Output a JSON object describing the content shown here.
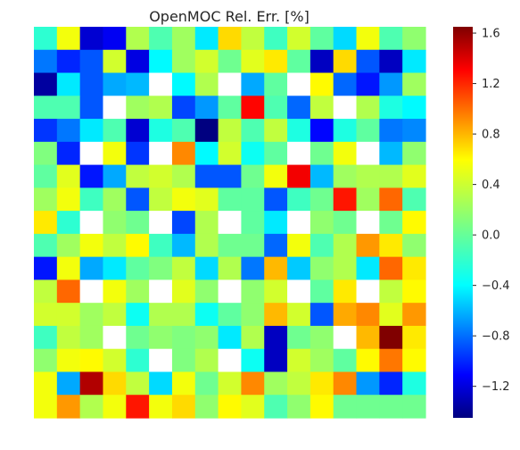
{
  "chart_data": {
    "type": "heatmap",
    "title": "OpenMOC Rel. Err. [%]",
    "xlabel": "",
    "ylabel": "",
    "colormap": "jet",
    "nan_color": "#ffffff",
    "vmin": -1.45,
    "vmax": 1.65,
    "colorbar_ticks": [
      1.6,
      1.2,
      0.8,
      0.4,
      0.0,
      -0.4,
      -0.8,
      -1.2
    ],
    "colorbar_tick_labels": [
      "1.6",
      "1.2",
      "0.8",
      "0.4",
      "0.0",
      "−0.4",
      "−0.8",
      "−1.2"
    ],
    "grid": false,
    "values": [
      [
        -0.15,
        0.45,
        -1.2,
        -1.1,
        0.25,
        -0.05,
        0.2,
        -0.35,
        0.6,
        0.3,
        -0.1,
        0.35,
        0.0,
        -0.4,
        0.45,
        -0.05,
        0.15
      ],
      [
        -0.7,
        -0.95,
        -0.8,
        0.35,
        -1.15,
        -0.3,
        0.2,
        0.35,
        0.05,
        0.4,
        0.55,
        0.0,
        -1.25,
        0.6,
        -0.8,
        -1.25,
        -0.35
      ],
      [
        -1.35,
        -0.35,
        -0.8,
        -0.55,
        -0.5,
        null,
        -0.3,
        0.25,
        null,
        -0.55,
        0.0,
        null,
        0.5,
        -0.75,
        -1.0,
        -0.6,
        0.2
      ],
      [
        -0.05,
        -0.05,
        -0.8,
        null,
        0.2,
        0.25,
        -0.85,
        -0.6,
        0.0,
        1.25,
        -0.05,
        -0.75,
        0.3,
        null,
        0.25,
        -0.2,
        -0.3
      ],
      [
        -0.9,
        -0.7,
        -0.35,
        -0.05,
        -1.2,
        -0.2,
        -0.05,
        -1.45,
        0.3,
        -0.05,
        0.3,
        -0.2,
        -1.05,
        -0.2,
        0.0,
        -0.7,
        -0.65
      ],
      [
        0.1,
        -0.95,
        null,
        0.45,
        -0.9,
        null,
        0.85,
        -0.3,
        0.35,
        -0.25,
        0.0,
        null,
        0.05,
        0.45,
        null,
        -0.5,
        0.15
      ],
      [
        0.0,
        0.4,
        -1.0,
        -0.55,
        0.3,
        0.35,
        0.25,
        -0.8,
        -0.8,
        0.05,
        0.45,
        1.3,
        -0.5,
        0.2,
        0.25,
        0.25,
        0.4
      ],
      [
        0.2,
        0.45,
        -0.1,
        0.2,
        -0.8,
        0.3,
        0.45,
        0.4,
        0.0,
        0.0,
        -0.8,
        -0.1,
        0.05,
        1.2,
        0.2,
        0.95,
        -0.05
      ],
      [
        0.55,
        -0.15,
        null,
        0.15,
        0.05,
        null,
        -0.85,
        0.25,
        null,
        0.0,
        -0.35,
        null,
        0.15,
        0.05,
        null,
        0.05,
        0.5
      ],
      [
        -0.05,
        0.2,
        0.45,
        0.3,
        0.5,
        -0.1,
        -0.5,
        0.25,
        0.05,
        0.05,
        -0.75,
        0.45,
        -0.05,
        0.25,
        0.8,
        0.55,
        0.15
      ],
      [
        -1.0,
        0.45,
        -0.55,
        -0.35,
        0.0,
        0.1,
        0.3,
        -0.4,
        0.25,
        -0.7,
        0.7,
        -0.45,
        0.15,
        0.25,
        -0.35,
        0.95,
        0.55
      ],
      [
        0.3,
        0.95,
        null,
        0.45,
        0.2,
        null,
        0.4,
        0.15,
        null,
        0.15,
        0.35,
        null,
        0.0,
        0.55,
        null,
        0.3,
        0.5
      ],
      [
        0.35,
        0.35,
        0.2,
        0.3,
        -0.25,
        0.25,
        0.25,
        -0.25,
        0.0,
        0.15,
        0.7,
        0.35,
        -0.8,
        0.75,
        0.85,
        0.4,
        0.8
      ],
      [
        -0.1,
        0.3,
        0.2,
        null,
        0.05,
        0.15,
        0.1,
        0.15,
        -0.35,
        0.25,
        -1.25,
        0.05,
        0.15,
        null,
        0.7,
        1.65,
        0.55
      ],
      [
        0.15,
        0.45,
        0.5,
        0.35,
        -0.15,
        null,
        0.1,
        0.25,
        null,
        -0.25,
        -1.25,
        0.35,
        0.2,
        0.0,
        0.5,
        0.9,
        0.5
      ],
      [
        0.45,
        -0.55,
        1.5,
        0.6,
        0.3,
        -0.4,
        0.45,
        0.05,
        0.35,
        0.85,
        0.2,
        0.3,
        0.55,
        0.85,
        -0.6,
        -0.95,
        -0.2
      ],
      [
        0.45,
        0.8,
        0.25,
        0.45,
        1.2,
        0.45,
        0.6,
        0.15,
        0.5,
        0.4,
        -0.05,
        0.15,
        0.5,
        0.05,
        0.05,
        0.05,
        0.05
      ]
    ]
  }
}
